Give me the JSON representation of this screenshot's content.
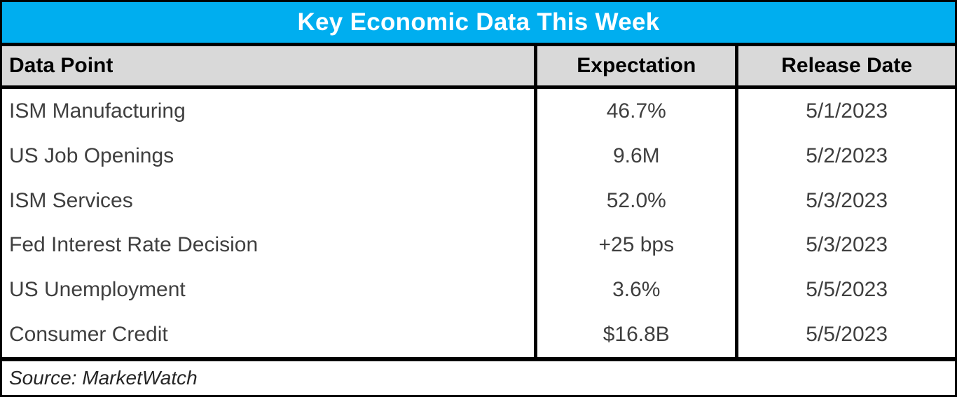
{
  "title": "Key Economic Data This Week",
  "source_line": "Source: MarketWatch",
  "colors": {
    "title_bg": "#00AEEF",
    "title_text": "#FFFFFF",
    "header_bg": "#D9D9D9",
    "header_text": "#000000",
    "body_text": "#3F3F3F",
    "border": "#000000"
  },
  "chart_data": {
    "type": "table",
    "title": "Key Economic Data This Week",
    "columns": [
      "Data Point",
      "Expectation",
      "Release Date"
    ],
    "rows": [
      [
        "ISM Manufacturing",
        "46.7%",
        "5/1/2023"
      ],
      [
        "US Job Openings",
        "9.6M",
        "5/2/2023"
      ],
      [
        "ISM Services",
        "52.0%",
        "5/3/2023"
      ],
      [
        "Fed Interest Rate Decision",
        "+25 bps",
        "5/3/2023"
      ],
      [
        "US Unemployment",
        "3.6%",
        "5/5/2023"
      ],
      [
        "Consumer Credit",
        "$16.8B",
        "5/5/2023"
      ]
    ],
    "source": "Source: MarketWatch"
  }
}
